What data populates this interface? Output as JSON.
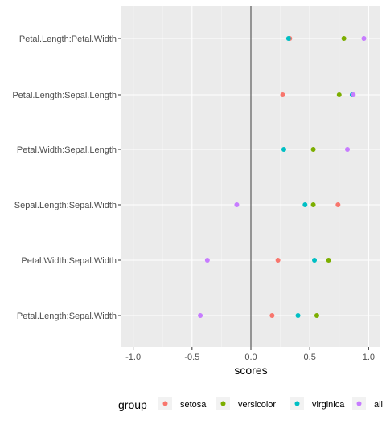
{
  "chart_data": {
    "type": "scatter",
    "xlabel": "scores",
    "ylabel": "",
    "xlim": [
      -1.1,
      1.1
    ],
    "x_ticks": [
      -1.0,
      -0.5,
      0.0,
      0.5,
      1.0
    ],
    "x_tick_labels": [
      "-1.0",
      "-0.5",
      "0.0",
      "0.5",
      "1.0"
    ],
    "reference_line": {
      "x": 0
    },
    "categories": [
      "Petal.Length:Petal.Width",
      "Petal.Length:Sepal.Length",
      "Petal.Width:Sepal.Length",
      "Sepal.Length:Sepal.Width",
      "Petal.Width:Sepal.Width",
      "Petal.Length:Sepal.Width"
    ],
    "series": [
      {
        "name": "setosa",
        "color": "#F8766D",
        "values": [
          0.33,
          0.27,
          null,
          0.74,
          0.23,
          0.18
        ]
      },
      {
        "name": "versicolor",
        "color": "#7CAE00",
        "values": [
          0.79,
          0.75,
          0.53,
          0.53,
          0.66,
          0.56
        ]
      },
      {
        "name": "virginica",
        "color": "#00BFC4",
        "values": [
          0.32,
          0.86,
          0.28,
          0.46,
          0.54,
          0.4
        ]
      },
      {
        "name": "all",
        "color": "#C77CFF",
        "values": [
          0.96,
          0.87,
          0.82,
          -0.12,
          -0.37,
          -0.43
        ]
      }
    ],
    "grid": true,
    "legend": {
      "title": "group",
      "position": "bottom"
    }
  }
}
